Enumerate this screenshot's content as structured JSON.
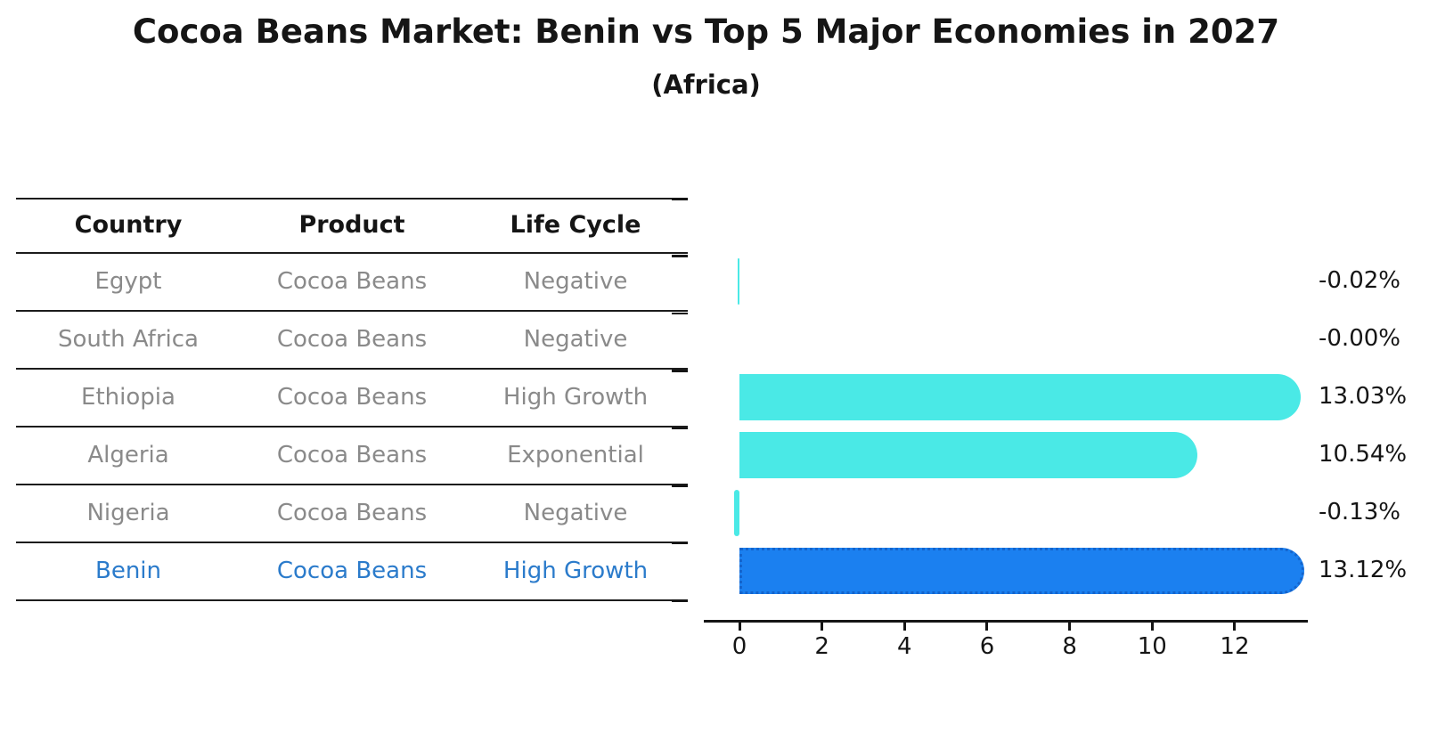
{
  "title": "Cocoa Beans Market: Benin vs Top 5 Major Economies in 2027",
  "subtitle": "(Africa)",
  "table": {
    "headers": [
      "Country",
      "Product",
      "Life Cycle"
    ],
    "rows": [
      {
        "country": "Egypt",
        "product": "Cocoa Beans",
        "life_cycle": "Negative",
        "highlight": false
      },
      {
        "country": "South Africa",
        "product": "Cocoa Beans",
        "life_cycle": "Negative",
        "highlight": false
      },
      {
        "country": "Ethiopia",
        "product": "Cocoa Beans",
        "life_cycle": "High Growth",
        "highlight": false
      },
      {
        "country": "Algeria",
        "product": "Cocoa Beans",
        "life_cycle": "Exponential",
        "highlight": false
      },
      {
        "country": "Nigeria",
        "product": "Cocoa Beans",
        "life_cycle": "Negative",
        "highlight": false
      },
      {
        "country": "Benin",
        "product": "Cocoa Beans",
        "life_cycle": "High Growth",
        "highlight": true
      }
    ]
  },
  "chart_data": {
    "type": "bar",
    "orientation": "horizontal",
    "title": "Cocoa Beans Market: Benin vs Top 5 Major Economies in 2027",
    "subtitle": "(Africa)",
    "categories": [
      "Egypt",
      "South Africa",
      "Ethiopia",
      "Algeria",
      "Nigeria",
      "Benin"
    ],
    "values": [
      -0.02,
      -0.0,
      13.03,
      10.54,
      -0.13,
      13.12
    ],
    "value_labels": [
      "-0.02%",
      "-0.00%",
      "13.03%",
      "10.54%",
      "-0.13%",
      "13.12%"
    ],
    "highlight_index": 5,
    "x_ticks": [
      0,
      2,
      4,
      6,
      8,
      10,
      12
    ],
    "xlim": [
      -0.9,
      13.8
    ],
    "xlabel": "",
    "ylabel": "",
    "grid": false,
    "legend": "none"
  },
  "colors": {
    "bar": "#4AE9E6",
    "highlight_bar": "#1B80F0",
    "highlight_border": "#1464CC",
    "row_text": "#8A8A8A",
    "highlight_text": "#2B7BCB",
    "text": "#151515",
    "axis": "#151515"
  }
}
